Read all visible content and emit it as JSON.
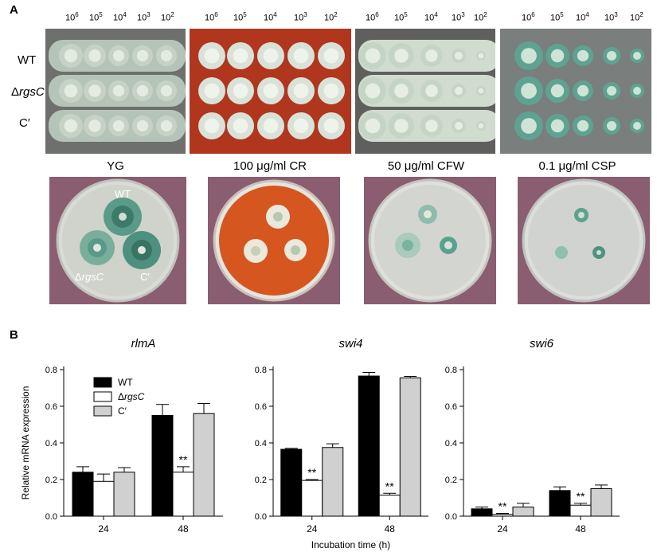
{
  "panel_a": {
    "letter": "A",
    "dilutions": [
      {
        "base": "10",
        "exp": "6"
      },
      {
        "base": "10",
        "exp": "5"
      },
      {
        "base": "10",
        "exp": "4"
      },
      {
        "base": "10",
        "exp": "3"
      },
      {
        "base": "10",
        "exp": "2"
      }
    ],
    "strains": {
      "wt": "WT",
      "mutant_prefix": "Δ",
      "mutant_name": "rgsC",
      "comp": "C′"
    },
    "conditions": [
      "YG",
      "100 μg/ml CR",
      "50 μg/ml CFW",
      "0.1 μg/ml CSP"
    ],
    "plate_labels": {
      "wt": "WT",
      "mutant_prefix": "Δ",
      "mutant_name": "rgsC",
      "comp": "C′"
    },
    "colors": {
      "yg_agar": "#6d706d",
      "cr_agar": "#b0361e",
      "cfw_agar": "#5f605e",
      "csp_agar": "#7a7e7c",
      "background": "#8a5e70",
      "colony": "#c9d6cc",
      "colony_green": "#5a9a88"
    }
  },
  "panel_b": {
    "letter": "B",
    "legend": [
      {
        "prefix": "",
        "name": "WT",
        "color": "#000000"
      },
      {
        "prefix": "Δ",
        "name": "rgsC",
        "color": "#ffffff"
      },
      {
        "prefix": "",
        "name": "C′",
        "color": "#d0d0d0"
      }
    ]
  },
  "chart_data": [
    {
      "type": "bar",
      "title": "rlmA",
      "categories": [
        "24",
        "48"
      ],
      "ylabel": "Relative mRNA expression",
      "xlabel": "",
      "ylim": [
        0,
        0.8
      ],
      "yticks": [
        "0.0",
        "0.2",
        "0.4",
        "0.6",
        "0.8"
      ],
      "series": [
        {
          "name": "WT",
          "values": [
            0.24,
            0.55
          ],
          "errors": [
            0.03,
            0.06
          ]
        },
        {
          "name": "ΔrgsC",
          "values": [
            0.19,
            0.24
          ],
          "errors": [
            0.04,
            0.03
          ]
        },
        {
          "name": "C′",
          "values": [
            0.24,
            0.56
          ],
          "errors": [
            0.025,
            0.055
          ]
        }
      ],
      "annotations": [
        {
          "category": "48",
          "series": "ΔrgsC",
          "text": "**"
        }
      ]
    },
    {
      "type": "bar",
      "title": "swi4",
      "categories": [
        "24",
        "48"
      ],
      "xlabel": "Incubation time (h)",
      "ylabel": "",
      "ylim": [
        0,
        0.8
      ],
      "yticks": [
        "0.0",
        "0.2",
        "0.4",
        "0.6",
        "0.8"
      ],
      "series": [
        {
          "name": "WT",
          "values": [
            0.365,
            0.765
          ],
          "errors": [
            0.005,
            0.02
          ]
        },
        {
          "name": "ΔrgsC",
          "values": [
            0.195,
            0.115
          ],
          "errors": [
            0.005,
            0.01
          ]
        },
        {
          "name": "C′",
          "values": [
            0.375,
            0.755
          ],
          "errors": [
            0.02,
            0.008
          ]
        }
      ],
      "annotations": [
        {
          "category": "24",
          "series": "ΔrgsC",
          "text": "**"
        },
        {
          "category": "48",
          "series": "ΔrgsC",
          "text": "**"
        }
      ]
    },
    {
      "type": "bar",
      "title": "swi6",
      "categories": [
        "24",
        "48"
      ],
      "xlabel": "",
      "ylabel": "",
      "ylim": [
        0,
        0.8
      ],
      "yticks": [
        "0.0",
        "0.2",
        "0.4",
        "0.6",
        "0.8"
      ],
      "series": [
        {
          "name": "WT",
          "values": [
            0.04,
            0.14
          ],
          "errors": [
            0.01,
            0.02
          ]
        },
        {
          "name": "ΔrgsC",
          "values": [
            0.01,
            0.06
          ],
          "errors": [
            0.005,
            0.01
          ]
        },
        {
          "name": "C′",
          "values": [
            0.05,
            0.15
          ],
          "errors": [
            0.02,
            0.02
          ]
        }
      ],
      "annotations": [
        {
          "category": "24",
          "series": "ΔrgsC",
          "text": "**"
        },
        {
          "category": "48",
          "series": "ΔrgsC",
          "text": "**"
        }
      ]
    }
  ]
}
